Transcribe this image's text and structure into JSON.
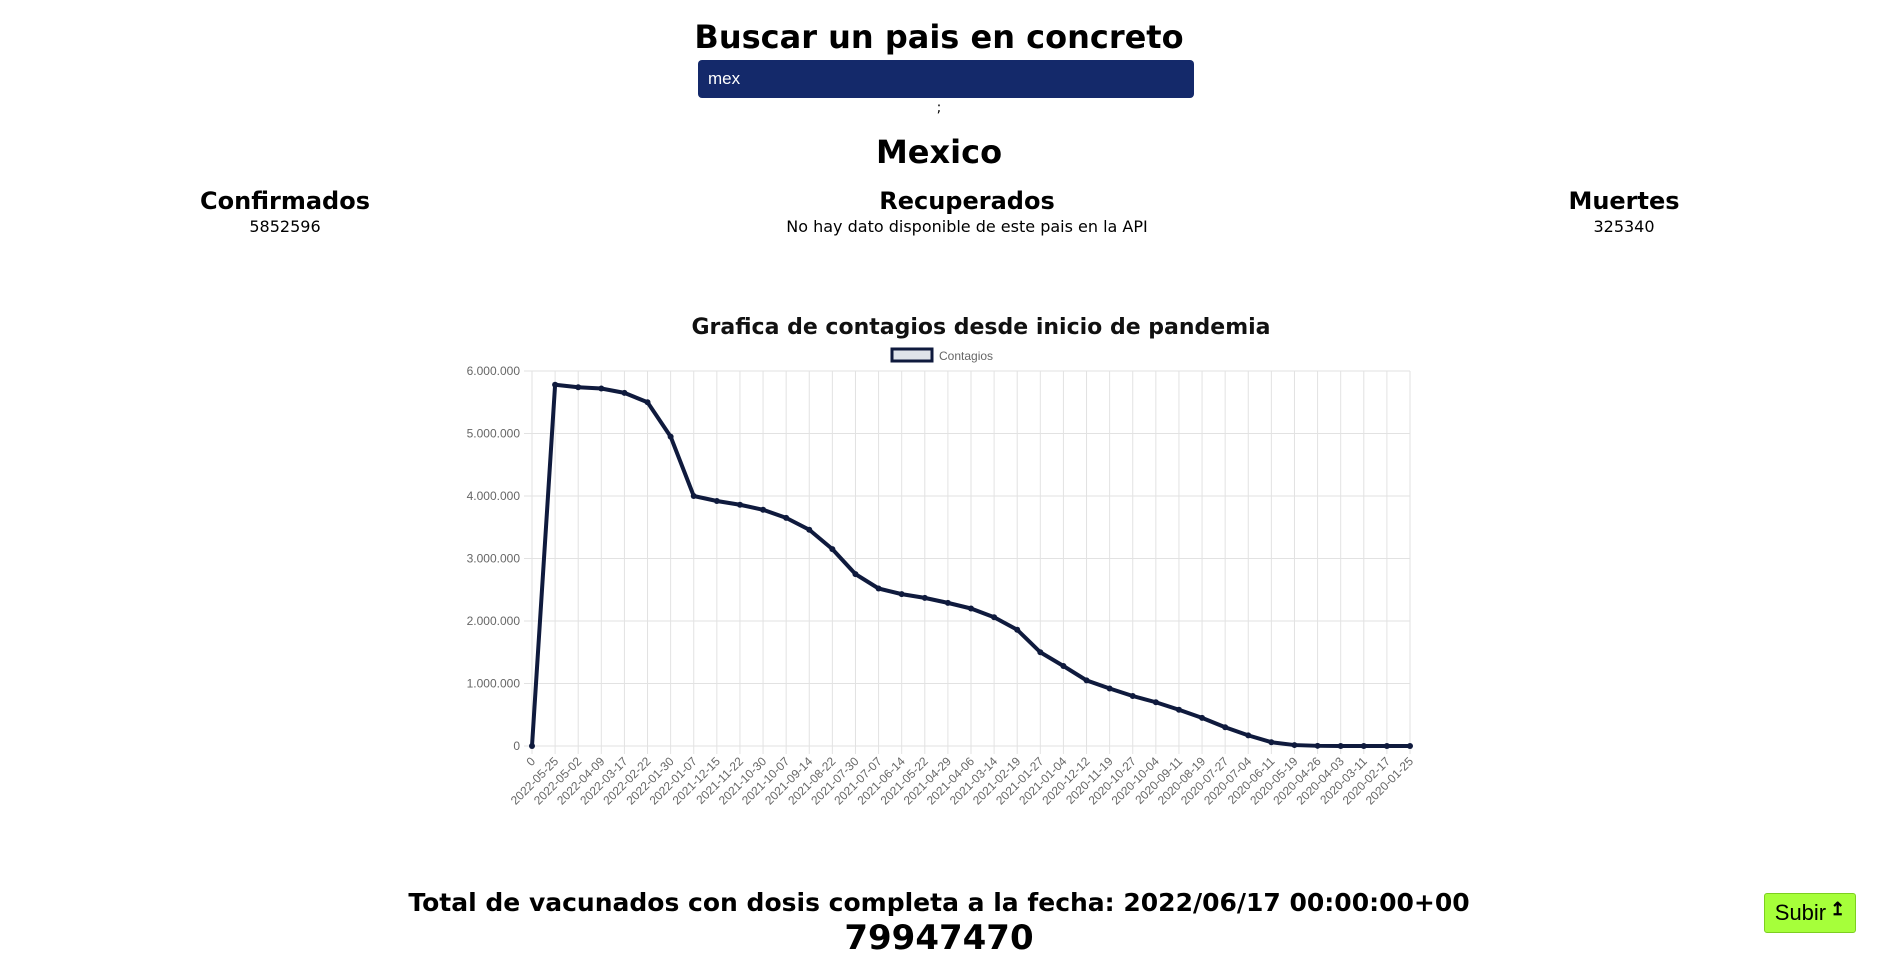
{
  "search": {
    "title": "Buscar un pais en concreto",
    "value": "mex",
    "separator": ";"
  },
  "country": {
    "name": "Mexico"
  },
  "stats": {
    "confirmed_label": "Confirmados",
    "confirmed_value": "5852596",
    "recovered_label": "Recuperados",
    "recovered_value": "No hay dato disponible de este pais en la API",
    "deaths_label": "Muertes",
    "deaths_value": "325340"
  },
  "chart_data": {
    "type": "line",
    "title": "Grafica de contagios desde inicio de pandemia",
    "legend": "Contagios",
    "legend_position": "top",
    "grid": true,
    "ylim": [
      0,
      6000000
    ],
    "yticks": [
      "0",
      "1.000.000",
      "2.000.000",
      "3.000.000",
      "4.000.000",
      "5.000.000",
      "6.000.000"
    ],
    "categories": [
      "0",
      "2022-05-25",
      "2022-05-02",
      "2022-04-09",
      "2022-03-17",
      "2022-02-22",
      "2022-01-30",
      "2022-01-07",
      "2021-12-15",
      "2021-11-22",
      "2021-10-30",
      "2021-10-07",
      "2021-09-14",
      "2021-08-22",
      "2021-07-30",
      "2021-07-07",
      "2021-06-14",
      "2021-05-22",
      "2021-04-29",
      "2021-04-06",
      "2021-03-14",
      "2021-02-19",
      "2021-01-27",
      "2021-01-04",
      "2020-12-12",
      "2020-11-19",
      "2020-10-27",
      "2020-10-04",
      "2020-09-11",
      "2020-08-19",
      "2020-07-27",
      "2020-07-04",
      "2020-06-11",
      "2020-05-19",
      "2020-04-26",
      "2020-04-03",
      "2020-03-11",
      "2020-02-17",
      "2020-01-25"
    ],
    "series": [
      {
        "name": "Contagios",
        "color": "#0f1a3d",
        "values": [
          0,
          5780000,
          5740000,
          5720000,
          5650000,
          5500000,
          4950000,
          4000000,
          3920000,
          3860000,
          3780000,
          3650000,
          3460000,
          3150000,
          2750000,
          2520000,
          2430000,
          2370000,
          2290000,
          2200000,
          2060000,
          1860000,
          1500000,
          1280000,
          1050000,
          920000,
          800000,
          700000,
          580000,
          450000,
          300000,
          170000,
          60000,
          15000,
          3000,
          500,
          0,
          0,
          0
        ]
      }
    ]
  },
  "vaccination": {
    "title": "Total de vacunados con dosis completa a la fecha: 2022/06/17 00:00:00+00",
    "value": "79947470"
  },
  "scroll_button": {
    "label": "Subir",
    "icon": "arrow-up-icon"
  }
}
